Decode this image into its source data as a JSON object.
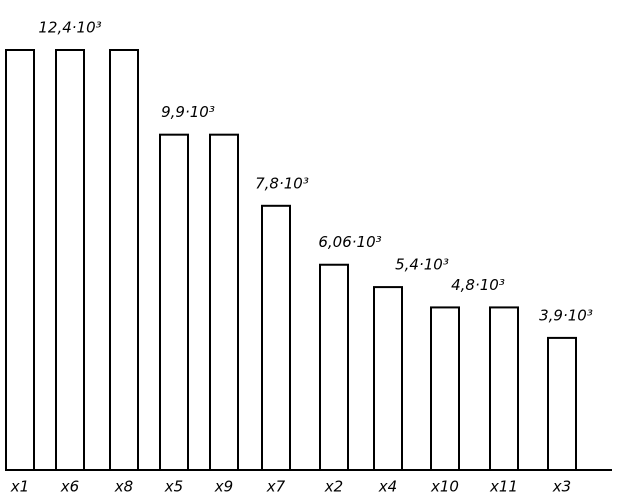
{
  "chart_data": {
    "type": "bar",
    "categories": [
      "x1",
      "x6",
      "x8",
      "x5",
      "x9",
      "x7",
      "x2",
      "x4",
      "x10",
      "x11",
      "x3"
    ],
    "values": [
      12400,
      12400,
      12400,
      9900,
      9900,
      7800,
      6060,
      5400,
      4800,
      4800,
      3900
    ],
    "value_labels": [
      "12,4·10³",
      null,
      null,
      "9,9·10³",
      null,
      "7,8·10³",
      "6,06·10³",
      "5,4·10³",
      "4,8·10³",
      null,
      "3,9·10³"
    ],
    "color": "#ffffff"
  }
}
